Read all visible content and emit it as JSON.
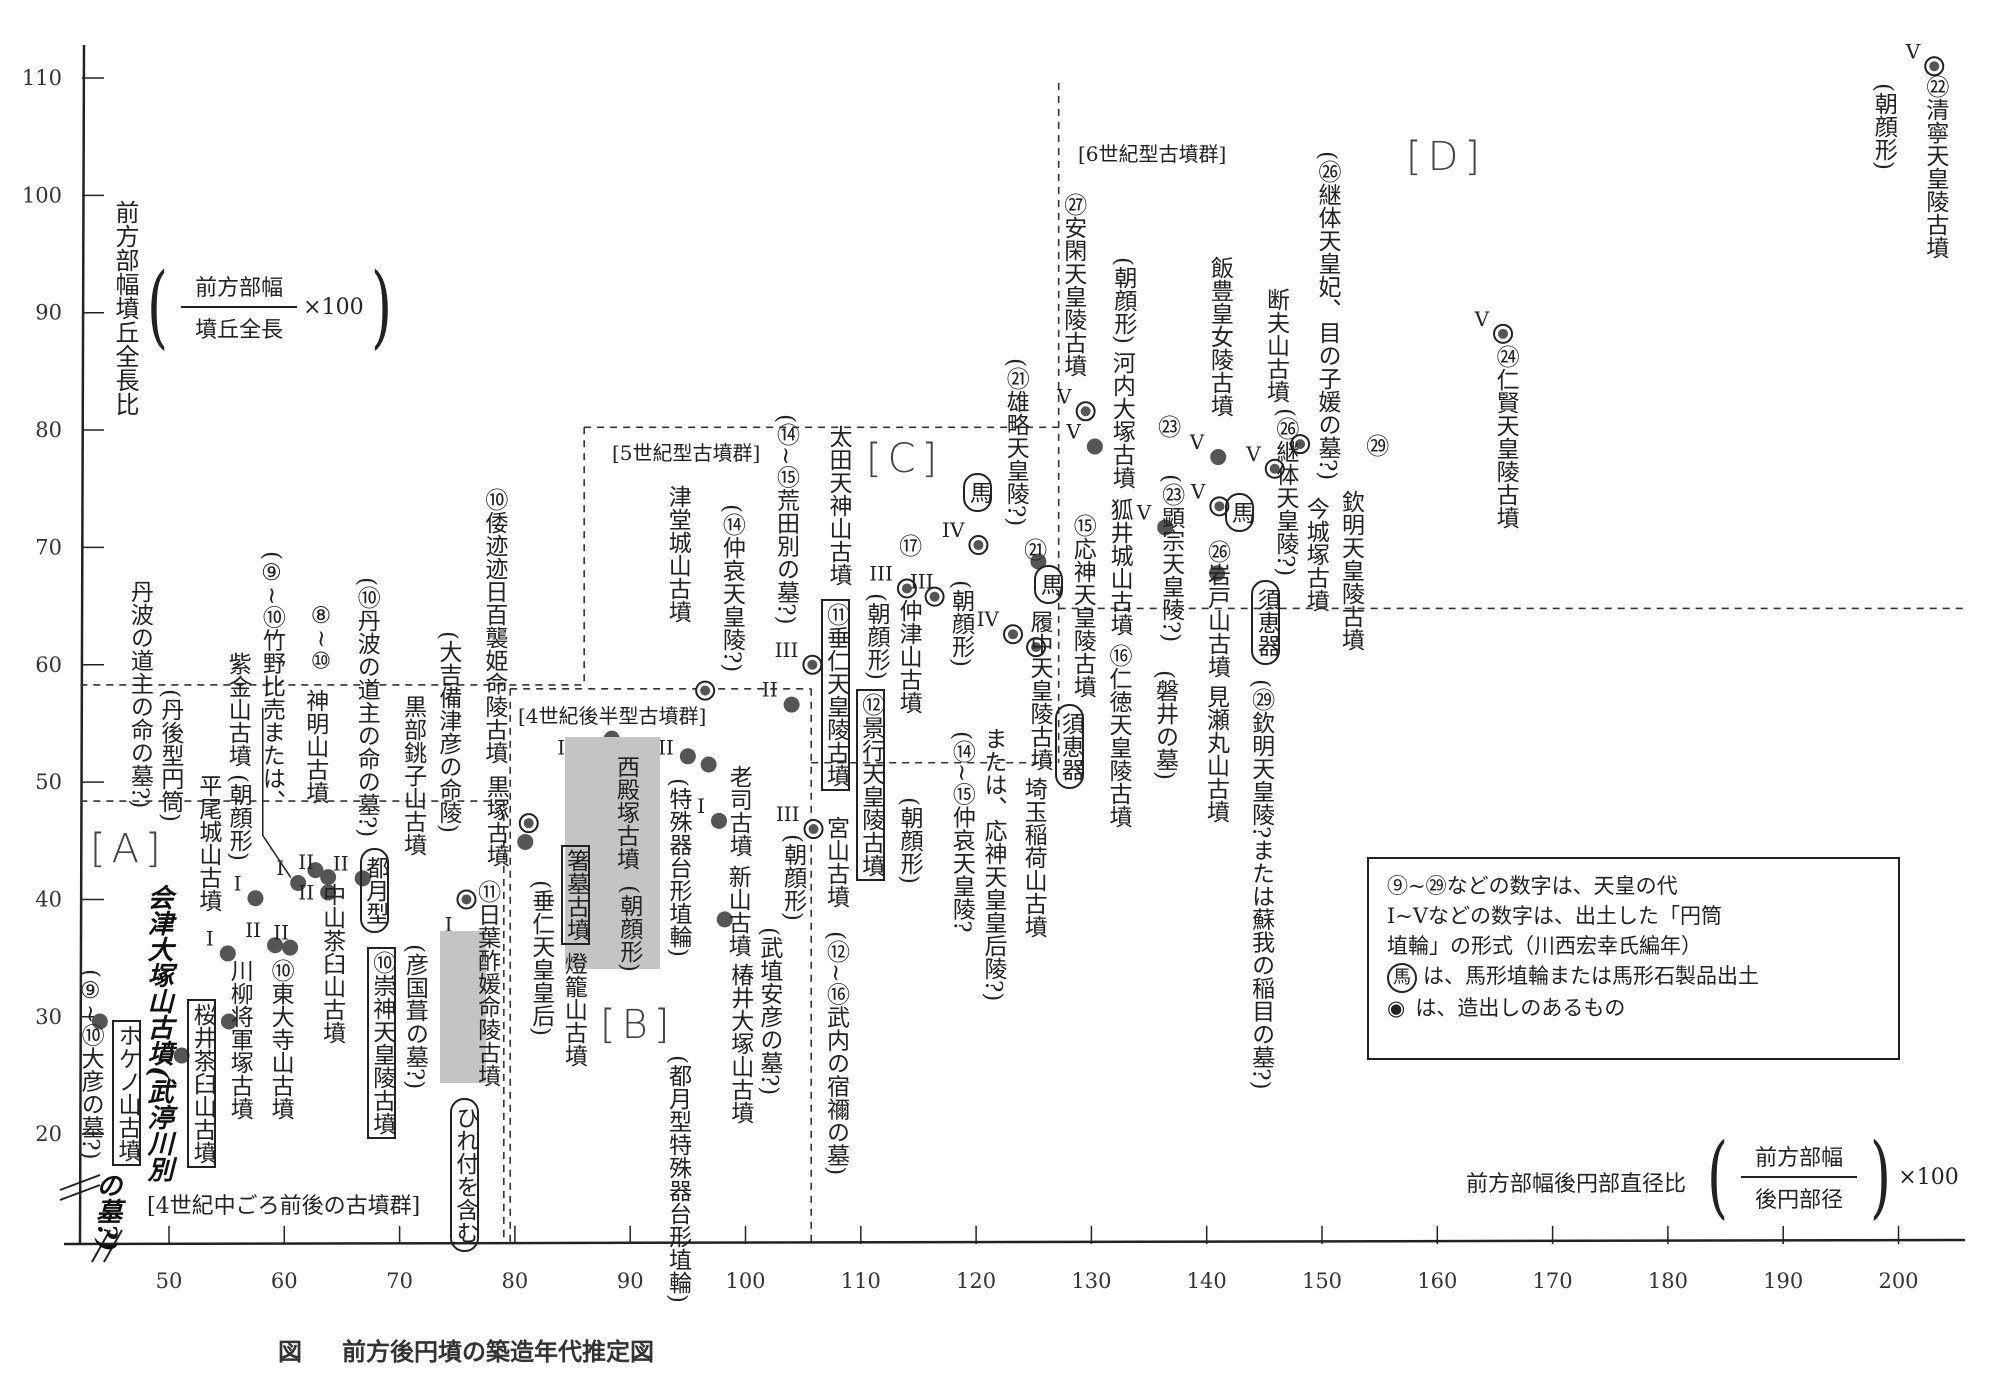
{
  "chart_data": {
    "type": "scatter",
    "title": "前方後円墳の築造年代推定図",
    "figure_label": "図",
    "xlabel": "前方部幅後円部直径比",
    "x_formula": {
      "numerator": "前方部幅",
      "denominator": "後円部径",
      "multiplier": "×100"
    },
    "ylabel": "前方部幅墳丘全長比",
    "y_formula": {
      "numerator": "前方部幅",
      "denominator": "墳丘全長",
      "multiplier": "×100"
    },
    "xlim": [
      42,
      207
    ],
    "ylim": [
      11,
      113
    ],
    "x_ticks": [
      "50",
      "60",
      "70",
      "80",
      "90",
      "100",
      "110",
      "120",
      "130",
      "140",
      "150",
      "160",
      "170",
      "180",
      "190",
      "200"
    ],
    "y_ticks": [
      "20",
      "30",
      "40",
      "50",
      "60",
      "70",
      "80",
      "90",
      "100",
      "110"
    ],
    "grid": false,
    "regions": [
      "[A]",
      "[B]",
      "[C]",
      "[D]"
    ],
    "groups": [
      "[4世紀中ごろ前後の古墳群]",
      "[4世紀後半型古墳群]",
      "[5世紀型古墳群]",
      "[6世紀型古墳群]"
    ],
    "points": [
      {
        "name": "ホケノ山古墳",
        "x": 44.0,
        "y": 29.6,
        "marker": "dot",
        "form": ""
      },
      {
        "name": "桜井茶臼山古墳",
        "x": 51.1,
        "y": 26.7,
        "marker": "dot",
        "form": ""
      },
      {
        "name": "大彦の墓?",
        "x": 55.2,
        "y": 29.6,
        "marker": "dot",
        "form": ""
      },
      {
        "name": "平尾城山古墳",
        "x": 55.1,
        "y": 35.4,
        "marker": "dot",
        "form": "I"
      },
      {
        "name": "紫金山古墳",
        "x": 57.5,
        "y": 40.1,
        "marker": "dot",
        "form": "I"
      },
      {
        "name": "川柳将軍塚古墳",
        "x": 59.2,
        "y": 36.1,
        "marker": "dot",
        "form": "II"
      },
      {
        "name": "東大寺山古墳",
        "x": 60.5,
        "y": 35.9,
        "marker": "dot",
        "form": "II"
      },
      {
        "name": "神明山古墳",
        "x": 61.2,
        "y": 41.4,
        "marker": "dot",
        "form": "I"
      },
      {
        "name": "黒部銚子山古墳",
        "x": 62.7,
        "y": 42.5,
        "marker": "dot",
        "form": ""
      },
      {
        "name": "中山茶臼山古墳",
        "x": 63.8,
        "y": 41.9,
        "marker": "dot",
        "form": "II"
      },
      {
        "name": "崇神天皇陵古墳",
        "x": 63.8,
        "y": 40.6,
        "marker": "dot",
        "form": "II"
      },
      {
        "name": "日葉酢媛命陵古墳",
        "x": 66.8,
        "y": 41.8,
        "marker": "dot",
        "form": "II"
      },
      {
        "name": "黒塚古墳",
        "x": 75.8,
        "y": 40.0,
        "marker": "ring",
        "form": ""
      },
      {
        "name": "燈籠山古墳",
        "x": 75.8,
        "y": 36.6,
        "marker": "dot",
        "form": "I"
      },
      {
        "name": "倭迹迹日百襲姫命陵古墳",
        "x": 81.2,
        "y": 46.5,
        "marker": "ring",
        "form": ""
      },
      {
        "name": "箸墓古墳",
        "x": 80.9,
        "y": 44.9,
        "marker": "dot",
        "form": ""
      },
      {
        "name": "西殿塚古墳",
        "x": 88.4,
        "y": 53.7,
        "marker": "dot",
        "form": "I~II"
      },
      {
        "name": "老司古墳",
        "x": 95.0,
        "y": 52.2,
        "marker": "dot",
        "form": "II"
      },
      {
        "name": "垂仁天皇陵古墳",
        "x": 96.8,
        "y": 51.5,
        "marker": "dot",
        "form": ""
      },
      {
        "name": "新山古墳",
        "x": 97.7,
        "y": 46.7,
        "marker": "dot",
        "form": "I"
      },
      {
        "name": "津堂城山古墳",
        "x": 96.5,
        "y": 57.8,
        "marker": "ring",
        "form": ""
      },
      {
        "name": "椿井大塚山古墳",
        "x": 98.2,
        "y": 38.3,
        "marker": "dot",
        "form": ""
      },
      {
        "name": "景行天皇陵古墳",
        "x": 104.0,
        "y": 56.6,
        "marker": "dot",
        "form": "II"
      },
      {
        "name": "宮山古墳",
        "x": 105.9,
        "y": 46.0,
        "marker": "ring",
        "form": "III"
      },
      {
        "name": "太田天神山古墳",
        "x": 105.8,
        "y": 60.0,
        "marker": "ring",
        "form": "III"
      },
      {
        "name": "仲津山古墳",
        "x": 114.0,
        "y": 66.5,
        "marker": "ring",
        "form": "III"
      },
      {
        "name": "履中天皇陵古墳",
        "x": 116.4,
        "y": 65.8,
        "marker": "ring",
        "form": "III"
      },
      {
        "name": "応神天皇陵古墳",
        "x": 120.2,
        "y": 70.2,
        "marker": "ring",
        "form": "IV"
      },
      {
        "name": "仁徳天皇陵古墳",
        "x": 123.2,
        "y": 62.6,
        "marker": "ring",
        "form": "IV"
      },
      {
        "name": "埼玉稲荷山古墳",
        "x": 125.2,
        "y": 61.5,
        "marker": "ring",
        "form": ""
      },
      {
        "name": "河内大塚古墳",
        "x": 125.4,
        "y": 68.8,
        "marker": "dot",
        "form": ""
      },
      {
        "name": "安閑天皇陵古墳",
        "x": 129.5,
        "y": 81.6,
        "marker": "ring",
        "form": "V"
      },
      {
        "name": "狐井城山古墳",
        "x": 130.3,
        "y": 78.6,
        "marker": "dot",
        "form": "V"
      },
      {
        "name": "岩戸山古墳",
        "x": 136.4,
        "y": 71.7,
        "marker": "dot",
        "form": "V"
      },
      {
        "name": "飯豊皇女陵古墳",
        "x": 141.0,
        "y": 77.7,
        "marker": "dot",
        "form": "V"
      },
      {
        "name": "今城塚古墳",
        "x": 141.1,
        "y": 73.5,
        "marker": "ring",
        "form": "V"
      },
      {
        "name": "見瀬丸山古墳",
        "x": 140.9,
        "y": 67.8,
        "marker": "dot",
        "form": ""
      },
      {
        "name": "断夫山古墳",
        "x": 145.9,
        "y": 76.7,
        "marker": "ring",
        "form": "V"
      },
      {
        "name": "欽明天皇陵古墳",
        "x": 148.1,
        "y": 78.8,
        "marker": "ring",
        "form": ""
      },
      {
        "name": "仁賢天皇陵古墳",
        "x": 165.7,
        "y": 88.2,
        "marker": "ring",
        "form": "V"
      },
      {
        "name": "清寧天皇陵古墳",
        "x": 203.1,
        "y": 111.0,
        "marker": "ring",
        "form": "V"
      }
    ],
    "annotations": [
      {
        "text": "ホケノ山古墳",
        "style": "box"
      },
      {
        "text": "会津大塚山古墳(武渟川別",
        "style": "hand"
      },
      {
        "text": "の墓?)",
        "style": "hand"
      },
      {
        "text": "桜井茶臼山古墳",
        "style": "box"
      },
      {
        "text": "平尾城山古墳",
        "style": "plain"
      },
      {
        "text": "(朝顔形)",
        "style": "plain"
      },
      {
        "text": "紫金山古墳",
        "style": "plain"
      },
      {
        "text": "(丹後型円筒)",
        "style": "plain"
      },
      {
        "text": "(⑨~⑩竹野比売または、",
        "style": "plain"
      },
      {
        "text": "丹波の道主の命の墓?)",
        "style": "plain"
      },
      {
        "text": "神明山古墳",
        "style": "plain"
      },
      {
        "text": "(⑩丹波の道主の命の墓?)",
        "style": "plain"
      },
      {
        "text": "黒部銚子山古墳",
        "style": "plain"
      },
      {
        "text": "中山茶臼山古墳",
        "style": "plain"
      },
      {
        "text": "⑧~⑩",
        "style": "plain"
      },
      {
        "text": "都月型",
        "style": "round"
      },
      {
        "text": "(大吉備津彦の命陵)",
        "style": "plain"
      },
      {
        "text": "⑩崇神天皇陵古墳",
        "style": "box"
      },
      {
        "text": "⑩東大寺山古墳",
        "style": "plain"
      },
      {
        "text": "(彦国葺の墓?)",
        "style": "plain"
      },
      {
        "text": "川柳将軍塚古墳",
        "style": "plain"
      },
      {
        "text": "(⑨~⑩大彦の墓?)",
        "style": "plain"
      },
      {
        "text": "⑪日葉酢媛命陵古墳",
        "style": "plain"
      },
      {
        "text": "(垂仁天皇皇后)",
        "style": "plain"
      },
      {
        "text": "ひれ付を含む",
        "style": "round"
      },
      {
        "text": "黒塚古墳",
        "style": "plain"
      },
      {
        "text": "燈籠山古墳",
        "style": "plain"
      },
      {
        "text": "箸墓古墳",
        "style": "box"
      },
      {
        "text": "(都月型特殊器台形埴輪)",
        "style": "plain"
      },
      {
        "text": "⑩倭迹迹日百襲姫命陵古墳",
        "style": "plain"
      },
      {
        "text": "西殿塚古墳",
        "style": "plain"
      },
      {
        "text": "(特殊器台形埴輪)",
        "style": "plain"
      },
      {
        "text": "(朝顔形)",
        "style": "plain"
      },
      {
        "text": "老司古墳",
        "style": "plain"
      },
      {
        "text": "新山古墳",
        "style": "plain"
      },
      {
        "text": "椿井大塚山古墳",
        "style": "plain"
      },
      {
        "text": "(武埴安彦の墓?)",
        "style": "plain"
      },
      {
        "text": "津堂城山古墳",
        "style": "plain"
      },
      {
        "text": "(⑭仲哀天皇陵?)",
        "style": "plain"
      },
      {
        "text": "⑪垂仁天皇陵古墳",
        "style": "box"
      },
      {
        "text": "⑫景行天皇陵古墳",
        "style": "box"
      },
      {
        "text": "(朝顔形)",
        "style": "plain"
      },
      {
        "text": "宮山古墳",
        "style": "plain"
      },
      {
        "text": "(朝顔形)",
        "style": "plain"
      },
      {
        "text": "(⑫~⑯武内の宿禰の墓)",
        "style": "plain"
      },
      {
        "text": "太田天神山古墳",
        "style": "plain"
      },
      {
        "text": "(⑭~⑮荒田別の墓?)",
        "style": "plain"
      },
      {
        "text": "仲津山古墳",
        "style": "plain"
      },
      {
        "text": "(朝顔形)",
        "style": "plain"
      },
      {
        "text": "(⑭~⑮仲哀天皇陵?",
        "style": "plain"
      },
      {
        "text": "または、応神天皇皇后陵?)",
        "style": "plain"
      },
      {
        "text": "⑰",
        "style": "plain"
      },
      {
        "text": "履中天皇陵古墳",
        "style": "plain"
      },
      {
        "text": "馬",
        "style": "round"
      },
      {
        "text": "⑮応神天皇陵古墳",
        "style": "plain"
      },
      {
        "text": "(朝顔形)",
        "style": "plain"
      },
      {
        "text": "⑯仁徳天皇陵古墳",
        "style": "plain"
      },
      {
        "text": "埼玉稲荷山古墳",
        "style": "plain"
      },
      {
        "text": "馬",
        "style": "round"
      },
      {
        "text": "㉑",
        "style": "plain"
      },
      {
        "text": "(㉑雄略天皇陵?)",
        "style": "plain"
      },
      {
        "text": "河内大塚古墳",
        "style": "plain"
      },
      {
        "text": "㉗安閑天皇陵古墳",
        "style": "plain"
      },
      {
        "text": "(朝顔形)",
        "style": "plain"
      },
      {
        "text": "狐井城山古墳",
        "style": "plain"
      },
      {
        "text": "(㉓顕宗天皇陵?)",
        "style": "plain"
      },
      {
        "text": "須恵器",
        "style": "round"
      },
      {
        "text": "㉖岩戸山古墳",
        "style": "plain"
      },
      {
        "text": "(磐井の墓)",
        "style": "plain"
      },
      {
        "text": "馬",
        "style": "round"
      },
      {
        "text": "須恵器",
        "style": "round"
      },
      {
        "text": "飯豊皇女陵古墳",
        "style": "plain"
      },
      {
        "text": "㉓",
        "style": "plain"
      },
      {
        "text": "今城塚古墳",
        "style": "plain"
      },
      {
        "text": "(㉖継体天皇陵?)",
        "style": "plain"
      },
      {
        "text": "見瀬丸山古墳",
        "style": "plain"
      },
      {
        "text": "(㉙欽明天皇陵?または蘇我の稲目の墓?)",
        "style": "plain"
      },
      {
        "text": "断夫山古墳",
        "style": "plain"
      },
      {
        "text": "(㉖継体天皇妃、目の子媛の墓?)",
        "style": "plain"
      },
      {
        "text": "欽明天皇陵古墳",
        "style": "plain"
      },
      {
        "text": "㉙",
        "style": "plain"
      },
      {
        "text": "㉔仁賢天皇陵古墳",
        "style": "plain"
      },
      {
        "text": "㉒清寧天皇陵古墳",
        "style": "plain"
      },
      {
        "text": "(朝顔形)",
        "style": "plain"
      }
    ],
    "legend": {
      "line1": "⑨~㉙などの数字は、天皇の代",
      "line2a": "I~Vなどの数字は、出土した「円筒",
      "line2b": "埴輪」の形式（川西宏幸氏編年）",
      "horse_symbol": "馬",
      "line3": "は、馬形埴輪または馬形石製品出土",
      "ring_symbol": "◉",
      "line4": "は、造出しのあるもの"
    }
  }
}
